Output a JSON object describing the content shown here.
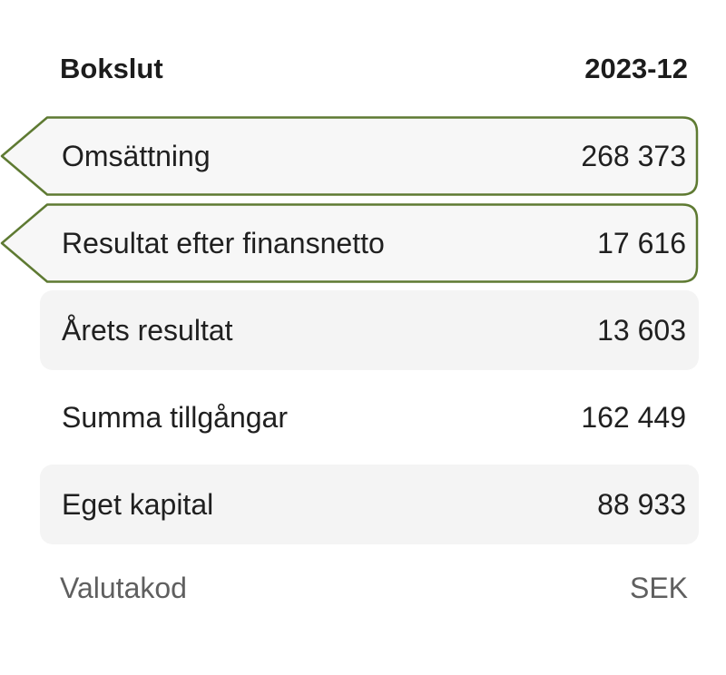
{
  "header": {
    "title": "Bokslut",
    "period": "2023-12"
  },
  "rows": [
    {
      "label": "Omsättning",
      "value": "268 373"
    },
    {
      "label": "Resultat efter finansnetto",
      "value": "17 616"
    },
    {
      "label": "Årets resultat",
      "value": "13 603"
    },
    {
      "label": "Summa tillgångar",
      "value": "162 449"
    },
    {
      "label": "Eget kapital",
      "value": "88 933"
    }
  ],
  "footer": {
    "label": "Valutakod",
    "value": "SEK"
  },
  "colors": {
    "highlight_border": "#5e7a32",
    "highlight_fill": "#f7f7f7",
    "shaded_fill": "#f4f4f4"
  }
}
